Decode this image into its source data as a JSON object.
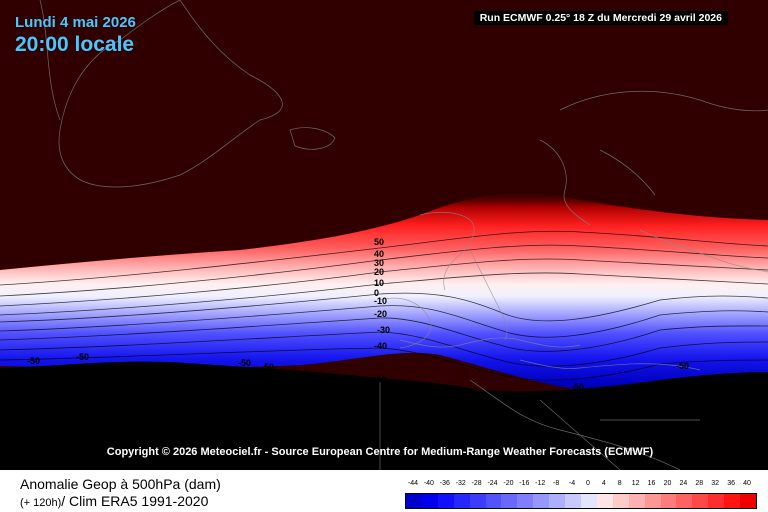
{
  "map_header": {
    "date_line": "Lundi 4 mai 2026",
    "time_line": "20:00 locale",
    "run_info": "Run ECMWF 0.25° 18 Z du Mercredi 29 avril 2026"
  },
  "copyright": "Copyright © 2026 Meteociel.fr - Source European Centre for Medium-Range Weather Forecasts (ECMWF)",
  "footer": {
    "title": "Anomalie Geop à 500hPa (dam)",
    "subtitle_a": "(+ 120h)",
    "subtitle_b": "/ Clim ERA5 1991-2020"
  },
  "legend": {
    "values": [
      "-44",
      "-40",
      "-36",
      "-32",
      "-28",
      "-24",
      "-20",
      "-16",
      "-12",
      "-8",
      "-4",
      "0",
      "4",
      "8",
      "12",
      "16",
      "20",
      "24",
      "28",
      "32",
      "36",
      "40"
    ],
    "colors": [
      "#0000cc",
      "#0000ee",
      "#1010ff",
      "#2626ff",
      "#3c3cff",
      "#5252ff",
      "#6868ff",
      "#7e7eff",
      "#9696ff",
      "#aeaeff",
      "#c8c8ff",
      "#e4e4ff",
      "#ffe6e6",
      "#ffcaca",
      "#ffb0b0",
      "#ff9696",
      "#ff7c7c",
      "#ff6262",
      "#ff4848",
      "#ff2e2e",
      "#ff1414",
      "#ee0000"
    ]
  },
  "contour_labels": {
    "left_stack": [
      "50",
      "40",
      "30",
      "20",
      "10",
      "0",
      "-10",
      "-20",
      "-30",
      "-40"
    ],
    "bottom": [
      "-50",
      "-50",
      "-50",
      "-50",
      "50",
      "50",
      "-50",
      "-50"
    ]
  },
  "colors": {
    "background_dark": "#300000",
    "land_black": "#000000",
    "title_blue": "#46c8ff"
  }
}
